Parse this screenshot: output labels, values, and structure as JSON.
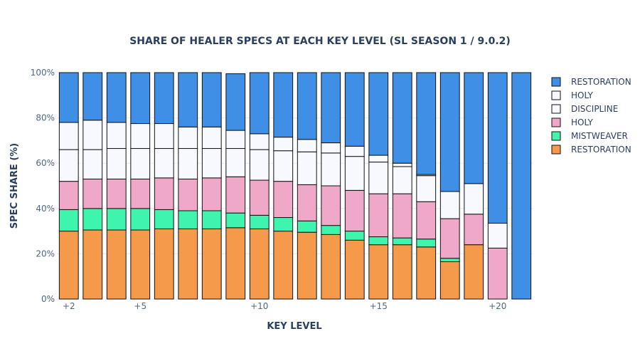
{
  "chart_data": {
    "type": "bar",
    "stacked": true,
    "title": "SHARE OF HEALER SPECS AT EACH KEY LEVEL (SL SEASON 1 / 9.0.2)",
    "xlabel": "KEY LEVEL",
    "ylabel": "SPEC SHARE (%)",
    "ylim": [
      0,
      100
    ],
    "y_ticks": [
      "0%",
      "20%",
      "40%",
      "60%",
      "80%",
      "100%"
    ],
    "x_tick_labels": [
      {
        "at": 2,
        "label": "+2"
      },
      {
        "at": 5,
        "label": "+5"
      },
      {
        "at": 10,
        "label": "+10"
      },
      {
        "at": 15,
        "label": "+15"
      },
      {
        "at": 20,
        "label": "+20"
      }
    ],
    "categories": [
      2,
      3,
      4,
      5,
      6,
      7,
      8,
      9,
      10,
      11,
      12,
      13,
      14,
      15,
      16,
      17,
      18,
      19,
      20,
      21
    ],
    "legend_position": "right",
    "series": [
      {
        "name": "RESTORATION",
        "color": "#f59a4b",
        "values": [
          30,
          30.5,
          30.5,
          30.5,
          31,
          31,
          31,
          31.5,
          31,
          30,
          29.5,
          28.5,
          26,
          24,
          24,
          23,
          16.5,
          24,
          0,
          0
        ]
      },
      {
        "name": "MISTWEAVER",
        "color": "#3ff5ad",
        "values": [
          9.5,
          9.5,
          9.5,
          9.5,
          8.5,
          8,
          8,
          6.5,
          6,
          6,
          5,
          4,
          4,
          3.5,
          3,
          3.5,
          1.5,
          0,
          0,
          0
        ]
      },
      {
        "name": "HOLY",
        "color": "#f0a8c9",
        "values": [
          12.5,
          13,
          13,
          13,
          14,
          14,
          14.5,
          16,
          15.5,
          16,
          16,
          17.5,
          18,
          19,
          19.5,
          16.5,
          17.5,
          13.5,
          22.5,
          0
        ]
      },
      {
        "name": "DISCIPLINE",
        "color": "#f7f9ff",
        "values": [
          14,
          13,
          13.5,
          13.5,
          13,
          13.5,
          13,
          12.5,
          13.5,
          13.5,
          14.5,
          14.5,
          15,
          14,
          12,
          11.5,
          12,
          13.5,
          11,
          0
        ]
      },
      {
        "name": "HOLY",
        "color": "#f7f9ff",
        "values": [
          12,
          13,
          11.5,
          11,
          11,
          9.5,
          9.5,
          8,
          7,
          6,
          5.5,
          4.5,
          4.5,
          3,
          1.5,
          0.5,
          0,
          0,
          0,
          0
        ]
      },
      {
        "name": "RESTORATION",
        "color": "#3f8fe6",
        "values": [
          22,
          21,
          22,
          22.5,
          22.5,
          24,
          24,
          25,
          27,
          28.5,
          29.5,
          31,
          32.5,
          36.5,
          40,
          45,
          52.5,
          49,
          66.5,
          100
        ]
      }
    ]
  }
}
